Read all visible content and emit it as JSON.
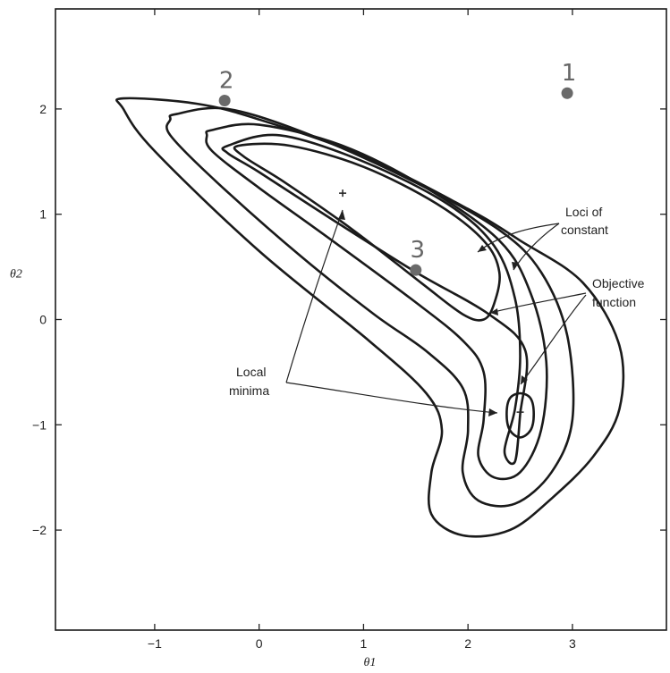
{
  "chart_data": {
    "type": "contour",
    "xlabel": "θ1",
    "ylabel": "θ2",
    "xlim": [
      -1.95,
      3.9
    ],
    "ylim": [
      -2.95,
      2.95
    ],
    "xticks": [
      -1,
      0,
      1,
      2,
      3
    ],
    "yticks": [
      -2,
      -1,
      0,
      1,
      2
    ],
    "contours": [
      {
        "level": 1,
        "points": [
          [
            -1.3,
            2.1
          ],
          [
            -0.6,
            2.05
          ],
          [
            0,
            1.9
          ],
          [
            1,
            1.55
          ],
          [
            2,
            1.05
          ],
          [
            2.5,
            0.75
          ],
          [
            3.1,
            0.35
          ],
          [
            3.45,
            -0.25
          ],
          [
            3.45,
            -0.85
          ],
          [
            3.2,
            -1.3
          ],
          [
            2.8,
            -1.7
          ],
          [
            2.4,
            -2.0
          ],
          [
            1.95,
            -2.05
          ],
          [
            1.65,
            -1.85
          ],
          [
            1.65,
            -1.45
          ],
          [
            1.75,
            -1.05
          ],
          [
            1.6,
            -0.7
          ],
          [
            1.05,
            -0.2
          ],
          [
            0,
            0.65
          ],
          [
            -1,
            1.6
          ],
          [
            -1.3,
            2.0
          ]
        ]
      },
      {
        "level": 2,
        "points": [
          [
            -0.8,
            1.95
          ],
          [
            -0.3,
            2.0
          ],
          [
            0.5,
            1.75
          ],
          [
            1.5,
            1.3
          ],
          [
            2.3,
            0.85
          ],
          [
            2.7,
            0.45
          ],
          [
            2.95,
            -0.15
          ],
          [
            3.0,
            -0.95
          ],
          [
            2.8,
            -1.45
          ],
          [
            2.45,
            -1.75
          ],
          [
            2.1,
            -1.72
          ],
          [
            1.95,
            -1.45
          ],
          [
            2.0,
            -1.05
          ],
          [
            1.95,
            -0.65
          ],
          [
            1.6,
            -0.3
          ],
          [
            1.1,
            0.05
          ],
          [
            0.4,
            0.6
          ],
          [
            -0.4,
            1.3
          ],
          [
            -0.85,
            1.75
          ],
          [
            -0.85,
            1.9
          ]
        ]
      },
      {
        "level": 3,
        "points": [
          [
            -0.45,
            1.8
          ],
          [
            0,
            1.85
          ],
          [
            0.8,
            1.65
          ],
          [
            1.6,
            1.25
          ],
          [
            2.3,
            0.75
          ],
          [
            2.6,
            0.25
          ],
          [
            2.75,
            -0.4
          ],
          [
            2.7,
            -1.05
          ],
          [
            2.5,
            -1.45
          ],
          [
            2.25,
            -1.5
          ],
          [
            2.1,
            -1.3
          ],
          [
            2.15,
            -0.95
          ],
          [
            2.15,
            -0.5
          ],
          [
            1.95,
            -0.2
          ],
          [
            1.45,
            0.2
          ],
          [
            0.7,
            0.75
          ],
          [
            0,
            1.25
          ],
          [
            -0.45,
            1.6
          ],
          [
            -0.5,
            1.75
          ]
        ]
      },
      {
        "level": 4,
        "points": [
          [
            -0.3,
            1.65
          ],
          [
            0.2,
            1.75
          ],
          [
            1,
            1.5
          ],
          [
            1.8,
            1.1
          ],
          [
            2.25,
            0.7
          ],
          [
            2.45,
            0.2
          ],
          [
            2.5,
            -0.35
          ],
          [
            2.45,
            -0.85
          ],
          [
            2.35,
            -1.25
          ],
          [
            2.45,
            -1.35
          ],
          [
            2.5,
            -0.9
          ],
          [
            2.55,
            -0.3
          ],
          [
            2.2,
            0.05
          ],
          [
            1.5,
            0.45
          ],
          [
            0.7,
            0.95
          ],
          [
            0,
            1.4
          ],
          [
            -0.3,
            1.58
          ]
        ]
      },
      {
        "level": 5,
        "points": [
          [
            -0.2,
            1.65
          ],
          [
            0.3,
            1.65
          ],
          [
            1,
            1.45
          ],
          [
            1.7,
            1.1
          ],
          [
            2.15,
            0.75
          ],
          [
            2.3,
            0.45
          ],
          [
            2.25,
            0.15
          ],
          [
            2.15,
            0.0
          ],
          [
            1.95,
            0.05
          ],
          [
            1.55,
            0.35
          ],
          [
            0.9,
            0.85
          ],
          [
            0.25,
            1.3
          ],
          [
            -0.15,
            1.55
          ]
        ]
      },
      {
        "level": 6,
        "points": [
          [
            2.4,
            -0.75
          ],
          [
            2.5,
            -0.7
          ],
          [
            2.6,
            -0.75
          ],
          [
            2.63,
            -0.9
          ],
          [
            2.6,
            -1.05
          ],
          [
            2.5,
            -1.12
          ],
          [
            2.4,
            -1.05
          ],
          [
            2.37,
            -0.9
          ]
        ]
      }
    ],
    "minima": [
      {
        "x": 0.8,
        "y": 1.2
      },
      {
        "x": 2.5,
        "y": -0.88
      }
    ],
    "marked_points": [
      {
        "label": "1",
        "x": 2.95,
        "y": 2.15
      },
      {
        "label": "2",
        "x": -0.33,
        "y": 2.08
      },
      {
        "label": "3",
        "x": 1.5,
        "y": 0.47
      }
    ],
    "annotations": {
      "loci_line1": "Loci of",
      "loci_line2": "constant",
      "objective_line1": "Objective",
      "objective_line2": "function",
      "local_line1": "Local",
      "local_line2": "minima"
    }
  }
}
